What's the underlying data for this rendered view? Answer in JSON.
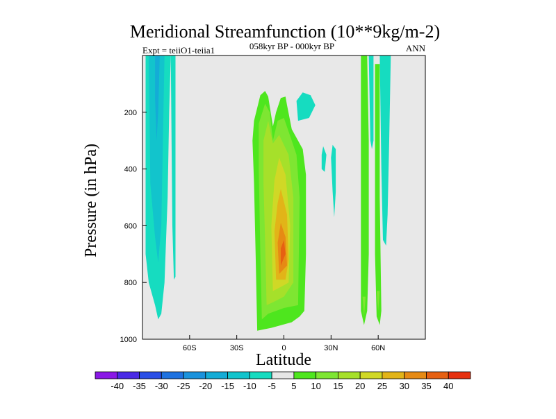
{
  "chart_data": {
    "type": "filled-contour",
    "title": "Meridional Streamfunction (10**9kg/m-2)",
    "left_subtitle": "Expt = teiiO1-teiia1",
    "center_subtitle": "058kyr BP - 000kyr BP",
    "right_subtitle": "ANN",
    "xlabel": "Latitude",
    "ylabel": "Pressure (in hPa)",
    "x_range": [
      -90,
      90
    ],
    "y_range": [
      1000,
      0
    ],
    "x_ticks": [
      "60S",
      "30S",
      "0",
      "30N",
      "60N"
    ],
    "y_ticks": [
      "200",
      "400",
      "600",
      "800",
      "1000"
    ],
    "background_color": "#e8e8e8",
    "colorbar": {
      "labels": [
        "-40",
        "-35",
        "-30",
        "-25",
        "-20",
        "-15",
        "-10",
        "-5",
        "5",
        "10",
        "15",
        "20",
        "25",
        "30",
        "35",
        "40"
      ],
      "colors": [
        "#8a18e6",
        "#4a2ae6",
        "#2a4ee6",
        "#1e72e0",
        "#1a92dc",
        "#14acd6",
        "#12c4cc",
        "#16dcc0",
        "#e6e6e6",
        "#4ee61e",
        "#7ee632",
        "#a6e02a",
        "#d0d826",
        "#e2b418",
        "#e68a14",
        "#e66012",
        "#e6300e"
      ]
    },
    "regions": [
      {
        "name": "sh-negative-cell-outer",
        "level": -10,
        "polygon": [
          [
            -88,
            0
          ],
          [
            -72,
            0
          ],
          [
            -73,
            200
          ],
          [
            -74,
            500
          ],
          [
            -76,
            800
          ],
          [
            -78,
            910
          ],
          [
            -80,
            930
          ],
          [
            -82,
            880
          ],
          [
            -86,
            800
          ],
          [
            -88,
            700
          ]
        ]
      },
      {
        "name": "sh-negative-cell-inner",
        "level": -15,
        "polygon": [
          [
            -86,
            0
          ],
          [
            -76,
            0
          ],
          [
            -77,
            300
          ],
          [
            -78,
            600
          ],
          [
            -80,
            730
          ],
          [
            -82,
            640
          ],
          [
            -85,
            450
          ]
        ]
      },
      {
        "name": "sh-negative-cell-core",
        "level": -20,
        "polygon": [
          [
            -82,
            0
          ],
          [
            -79,
            0
          ],
          [
            -80,
            200
          ],
          [
            -81,
            300
          ],
          [
            -82,
            150
          ]
        ]
      },
      {
        "name": "sh-negative-strip",
        "level": -10,
        "polygon": [
          [
            -72,
            0
          ],
          [
            -69,
            0
          ],
          [
            -69,
            780
          ],
          [
            -70,
            790
          ],
          [
            -71,
            600
          ]
        ]
      },
      {
        "name": "tropical-positive-cell-5",
        "level": 5,
        "polygon": [
          [
            -17,
            970
          ],
          [
            -18,
            700
          ],
          [
            -19,
            450
          ],
          [
            -20,
            300
          ],
          [
            -19,
            230
          ],
          [
            -15,
            140
          ],
          [
            -12,
            125
          ],
          [
            -10,
            145
          ],
          [
            -7,
            250
          ],
          [
            -5,
            200
          ],
          [
            -2,
            150
          ],
          [
            1,
            145
          ],
          [
            2,
            175
          ],
          [
            5,
            260
          ],
          [
            8,
            290
          ],
          [
            12,
            330
          ],
          [
            14,
            420
          ],
          [
            14,
            700
          ],
          [
            13,
            900
          ],
          [
            10,
            920
          ],
          [
            5,
            940
          ],
          [
            -8,
            960
          ]
        ]
      },
      {
        "name": "tropical-positive-cell-10",
        "level": 10,
        "polygon": [
          [
            -14,
            930
          ],
          [
            -15,
            700
          ],
          [
            -16,
            400
          ],
          [
            -16,
            240
          ],
          [
            -12,
            170
          ],
          [
            -9,
            200
          ],
          [
            -7,
            300
          ],
          [
            -4,
            230
          ],
          [
            0,
            220
          ],
          [
            5,
            300
          ],
          [
            8,
            350
          ],
          [
            10,
            500
          ],
          [
            9,
            880
          ],
          [
            0,
            890
          ],
          [
            -10,
            910
          ]
        ]
      },
      {
        "name": "tropical-positive-cell-15",
        "level": 15,
        "polygon": [
          [
            -11,
            880
          ],
          [
            -12,
            650
          ],
          [
            -13,
            450
          ],
          [
            -13,
            300
          ],
          [
            -10,
            230
          ],
          [
            -7,
            310
          ],
          [
            -3,
            280
          ],
          [
            3,
            350
          ],
          [
            6,
            500
          ],
          [
            6,
            800
          ],
          [
            0,
            850
          ],
          [
            -7,
            870
          ]
        ]
      },
      {
        "name": "tropical-positive-cell-20",
        "level": 20,
        "polygon": [
          [
            -7,
            830
          ],
          [
            -8,
            600
          ],
          [
            -6,
            440
          ],
          [
            -3,
            360
          ],
          [
            1,
            420
          ],
          [
            4,
            600
          ],
          [
            3,
            800
          ],
          [
            0,
            810
          ]
        ]
      },
      {
        "name": "tropical-positive-cell-25",
        "level": 25,
        "polygon": [
          [
            -5,
            790
          ],
          [
            -6,
            620
          ],
          [
            -4,
            520
          ],
          [
            -2,
            470
          ],
          [
            2,
            560
          ],
          [
            3,
            720
          ],
          [
            1,
            790
          ]
        ]
      },
      {
        "name": "tropical-positive-cell-30",
        "level": 30,
        "polygon": [
          [
            -3,
            770
          ],
          [
            -4,
            660
          ],
          [
            -2,
            590
          ],
          [
            1,
            640
          ],
          [
            2,
            740
          ]
        ]
      },
      {
        "name": "tropical-positive-cell-35",
        "level": 35,
        "polygon": [
          [
            -2,
            740
          ],
          [
            -2,
            680
          ],
          [
            0,
            650
          ],
          [
            1,
            700
          ]
        ]
      },
      {
        "name": "small-negative-blob-a",
        "level": -10,
        "polygon": [
          [
            8,
            160
          ],
          [
            12,
            130
          ],
          [
            17,
            140
          ],
          [
            20,
            175
          ],
          [
            16,
            220
          ],
          [
            9,
            230
          ]
        ]
      },
      {
        "name": "small-negative-sliver-a",
        "level": -10,
        "polygon": [
          [
            25,
            320
          ],
          [
            27,
            350
          ],
          [
            26,
            410
          ],
          [
            24,
            400
          ],
          [
            24,
            350
          ]
        ]
      },
      {
        "name": "small-negative-sliver-b",
        "level": -10,
        "polygon": [
          [
            31,
            315
          ],
          [
            33,
            330
          ],
          [
            33,
            480
          ],
          [
            32,
            570
          ],
          [
            31,
            480
          ],
          [
            30,
            360
          ]
        ]
      },
      {
        "name": "nh-positive-cell-a",
        "level": 5,
        "polygon": [
          [
            49,
            0
          ],
          [
            53,
            0
          ],
          [
            54,
            300
          ],
          [
            54,
            700
          ],
          [
            53,
            900
          ],
          [
            51,
            950
          ],
          [
            49,
            900
          ],
          [
            49,
            500
          ]
        ]
      },
      {
        "name": "nh-positive-cell-a-inner",
        "level": 10,
        "polygon": [
          [
            50,
            850
          ],
          [
            52,
            850
          ],
          [
            51,
            920
          ]
        ]
      },
      {
        "name": "nh-negative-strip",
        "level": -10,
        "polygon": [
          [
            54,
            0
          ],
          [
            57,
            0
          ],
          [
            57,
            300
          ],
          [
            56,
            330
          ],
          [
            55,
            300
          ]
        ]
      },
      {
        "name": "nh-positive-cell-b",
        "level": 5,
        "polygon": [
          [
            58,
            30
          ],
          [
            61,
            30
          ],
          [
            61,
            500
          ],
          [
            62,
            900
          ],
          [
            61,
            950
          ],
          [
            59,
            920
          ],
          [
            58,
            700
          ],
          [
            58,
            300
          ]
        ]
      },
      {
        "name": "nh-positive-cell-b-inner",
        "level": 10,
        "polygon": [
          [
            59,
            830
          ],
          [
            61,
            830
          ],
          [
            60,
            900
          ]
        ]
      },
      {
        "name": "nh-negative-cell-c",
        "level": -10,
        "polygon": [
          [
            61,
            0
          ],
          [
            68,
            0
          ],
          [
            67,
            300
          ],
          [
            66,
            560
          ],
          [
            65,
            670
          ],
          [
            63,
            650
          ],
          [
            62,
            400
          ]
        ]
      }
    ]
  }
}
